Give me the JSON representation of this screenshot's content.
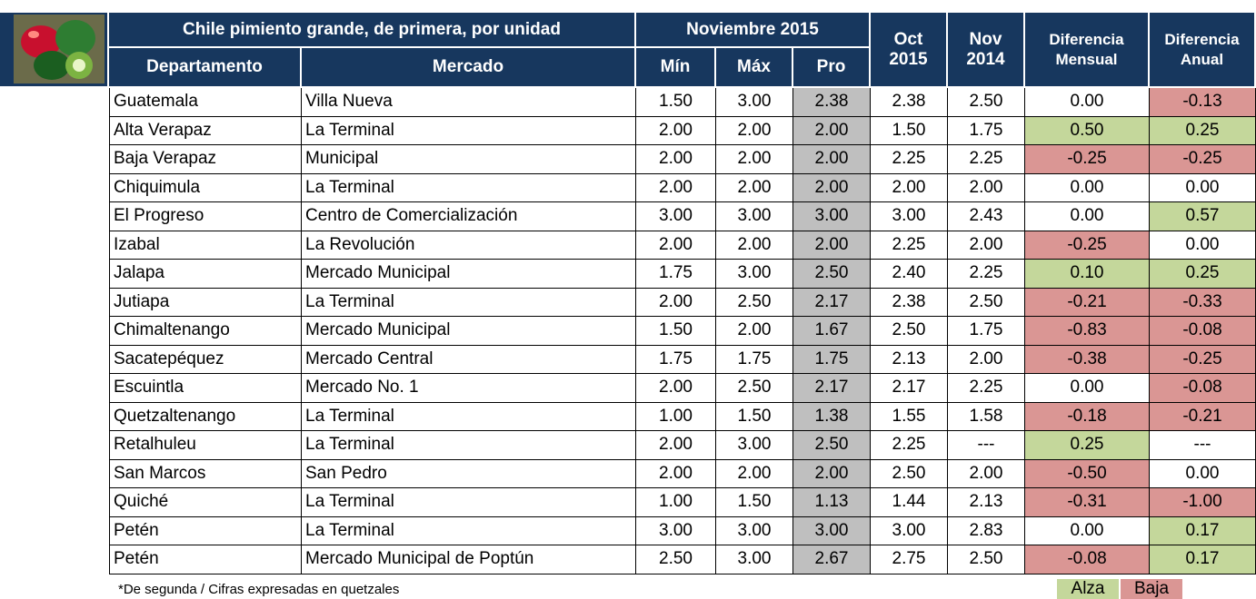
{
  "header": {
    "title": "Chile pimiento grande, de primera, por unidad",
    "period": "Noviembre 2015",
    "columns": [
      "Departamento",
      "Mercado",
      "Mín",
      "Máx",
      "Pro"
    ],
    "oct": [
      "Oct",
      "2015"
    ],
    "nov": [
      "Nov",
      "2014"
    ],
    "dif_mensual": [
      "Diferencia",
      "Mensual"
    ],
    "dif_anual": [
      "Diferencia",
      "Anual"
    ]
  },
  "table": {
    "rows": [
      [
        "Guatemala",
        "Villa Nueva",
        "1.50",
        "3.00",
        "2.38",
        "2.38",
        "2.50",
        "0.00",
        "-0.13"
      ],
      [
        "Alta Verapaz",
        "La Terminal",
        "2.00",
        "2.00",
        "2.00",
        "1.50",
        "1.75",
        "0.50",
        "0.25"
      ],
      [
        "Baja Verapaz",
        "Municipal",
        "2.00",
        "2.00",
        "2.00",
        "2.25",
        "2.25",
        "-0.25",
        "-0.25"
      ],
      [
        "Chiquimula",
        "La Terminal",
        "2.00",
        "2.00",
        "2.00",
        "2.00",
        "2.00",
        "0.00",
        "0.00"
      ],
      [
        "El Progreso",
        "Centro de Comercialización",
        "3.00",
        "3.00",
        "3.00",
        "3.00",
        "2.43",
        "0.00",
        "0.57"
      ],
      [
        "Izabal",
        "La Revolución",
        "2.00",
        "2.00",
        "2.00",
        "2.25",
        "2.00",
        "-0.25",
        "0.00"
      ],
      [
        "Jalapa",
        "Mercado Municipal",
        "1.75",
        "3.00",
        "2.50",
        "2.40",
        "2.25",
        "0.10",
        "0.25"
      ],
      [
        "Jutiapa",
        "La Terminal",
        "2.00",
        "2.50",
        "2.17",
        "2.38",
        "2.50",
        "-0.21",
        "-0.33"
      ],
      [
        "Chimaltenango",
        "Mercado Municipal",
        "1.50",
        "2.00",
        "1.67",
        "2.50",
        "1.75",
        "-0.83",
        "-0.08"
      ],
      [
        "Sacatepéquez",
        "Mercado Central",
        "1.75",
        "1.75",
        "1.75",
        "2.13",
        "2.00",
        "-0.38",
        "-0.25"
      ],
      [
        "Escuintla",
        "Mercado No. 1",
        "2.00",
        "2.50",
        "2.17",
        "2.17",
        "2.25",
        "0.00",
        "-0.08"
      ],
      [
        "Quetzaltenango",
        "La Terminal",
        "1.00",
        "1.50",
        "1.38",
        "1.55",
        "1.58",
        "-0.18",
        "-0.21"
      ],
      [
        "Retalhuleu",
        "La Terminal",
        "2.00",
        "3.00",
        "2.50",
        "2.25",
        "---",
        "0.25",
        "---"
      ],
      [
        "San Marcos",
        "San Pedro",
        "2.00",
        "2.00",
        "2.00",
        "2.50",
        "2.00",
        "-0.50",
        "0.00"
      ],
      [
        "Quiché",
        "La Terminal",
        "1.00",
        "1.50",
        "1.13",
        "1.44",
        "2.13",
        "-0.31",
        "-1.00"
      ],
      [
        "Petén",
        "La Terminal",
        "3.00",
        "3.00",
        "3.00",
        "3.00",
        "2.83",
        "0.00",
        "0.17"
      ],
      [
        "Petén",
        "Mercado Municipal de Poptún",
        "2.50",
        "3.00",
        "2.67",
        "2.75",
        "2.50",
        "-0.08",
        "0.17"
      ]
    ],
    "mensual_fill": [
      null,
      "#c4d79b",
      "#da9694",
      null,
      null,
      "#da9694",
      "#c4d79b",
      "#da9694",
      "#da9694",
      "#da9694",
      null,
      "#da9694",
      "#c4d79b",
      "#da9694",
      "#da9694",
      null,
      "#da9694"
    ],
    "anual_fill": [
      "#da9694",
      "#c4d79b",
      "#da9694",
      null,
      "#c4d79b",
      null,
      "#c4d79b",
      "#da9694",
      "#da9694",
      "#da9694",
      "#da9694",
      "#da9694",
      null,
      null,
      "#da9694",
      "#c4d79b",
      "#c4d79b"
    ],
    "pro_fill": "#bfbfbf"
  },
  "footer": {
    "note": "*De segunda / Cifras expresadas en quetzales",
    "legend": [
      {
        "label": "Alza",
        "color": "#c4d79b"
      },
      {
        "label": "Baja",
        "color": "#da9694"
      }
    ]
  }
}
